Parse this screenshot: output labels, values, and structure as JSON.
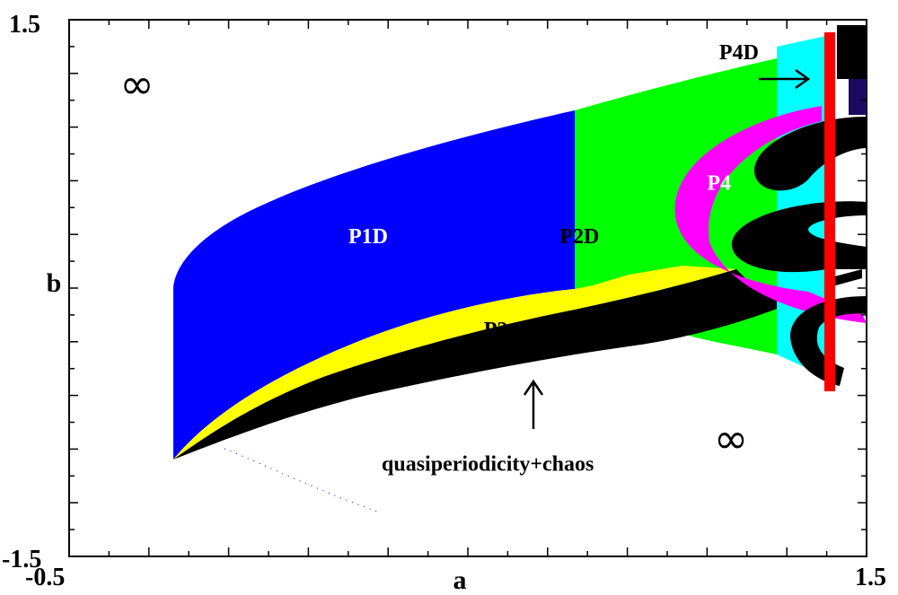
{
  "chart_data": {
    "type": "heatmap",
    "title": "",
    "xlabel": "a",
    "ylabel": "b",
    "xlim": [
      -0.5,
      1.5
    ],
    "ylim": [
      -1.5,
      1.5
    ],
    "x_tick_labels": [
      "-0.5",
      "1.5"
    ],
    "y_tick_labels": [
      "1.5",
      "-1.5"
    ],
    "colors": {
      "P1D": "#0000ff",
      "P2D": "#00ff00",
      "P2": "#ffff00",
      "P4": "#ff00ff",
      "P4D": "#00ffff",
      "red_band": "#ff0000",
      "chaos": "#000000",
      "divergent": "#ffffff"
    },
    "regions": [
      {
        "label": "P1D",
        "color": "#0000ff",
        "label_at": [
          0.25,
          0.25
        ]
      },
      {
        "label": "P2D",
        "color": "#00ff00",
        "label_at": [
          0.78,
          0.25
        ]
      },
      {
        "label": "P2",
        "color": "#ffff00",
        "label_at": [
          0.57,
          -0.27
        ]
      },
      {
        "label": "P4",
        "color": "#ff00ff",
        "label_at": [
          1.13,
          0.55
        ]
      },
      {
        "label": "P4D",
        "color": "#00ffff",
        "label_at": [
          1.18,
          1.28
        ]
      }
    ],
    "annotations": [
      {
        "text": "quasiperiodicity+chaos",
        "at": [
          0.55,
          -1.02
        ],
        "arrow_to": [
          0.6,
          -0.52
        ]
      },
      {
        "text": "∞",
        "at": [
          -0.33,
          1.06
        ]
      },
      {
        "text": "∞",
        "at": [
          1.16,
          -0.92
        ]
      }
    ]
  }
}
